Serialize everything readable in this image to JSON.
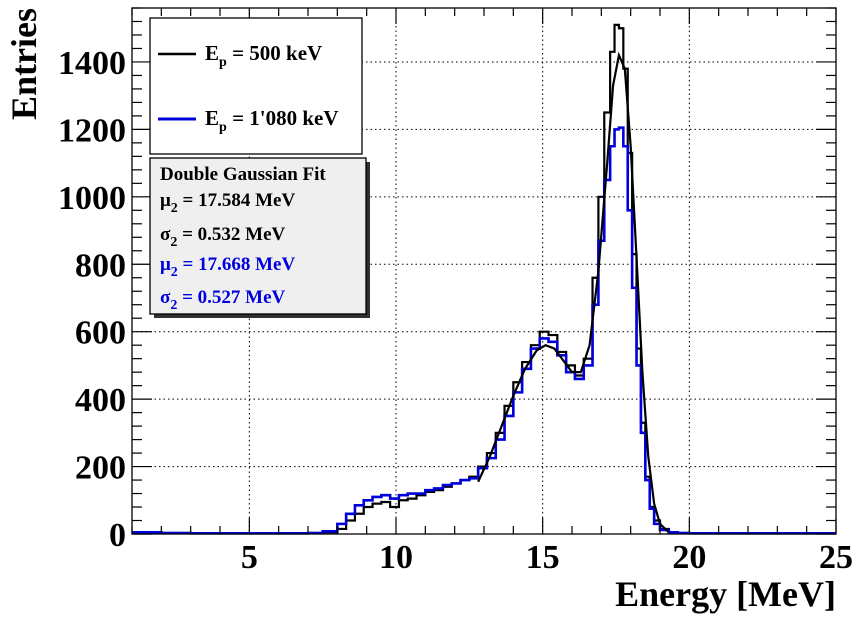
{
  "chart_data": {
    "type": "histogram",
    "xlabel": "Energy [MeV]",
    "ylabel": "Entries",
    "xlim": [
      1,
      25
    ],
    "ylim": [
      0,
      1560
    ],
    "xticks": [
      5,
      10,
      15,
      20,
      25
    ],
    "yticks": [
      0,
      200,
      400,
      600,
      800,
      1000,
      1200,
      1400
    ],
    "grid": true,
    "legend_placement": "top-left",
    "legend": [
      {
        "label_main": "E",
        "label_sub": "p",
        "label_rest": " = 500 keV",
        "color": "#000000"
      },
      {
        "label_main": "E",
        "label_sub": "p",
        "label_rest": " = 1'080 keV",
        "color": "#0000dd"
      }
    ],
    "stats_box": {
      "title": "Double Gaussian Fit",
      "lines": [
        {
          "sym": "μ",
          "sub": "2",
          "rest": " = 17.584 MeV",
          "color": "#000000"
        },
        {
          "sym": "σ",
          "sub": "2",
          "rest": " = 0.532 MeV",
          "color": "#000000"
        },
        {
          "sym": "μ",
          "sub": "2",
          "rest": " = 17.668 MeV",
          "color": "#0000dd"
        },
        {
          "sym": "σ",
          "sub": "2",
          "rest": " = 0.527 MeV",
          "color": "#0000dd"
        }
      ]
    },
    "series": [
      {
        "name": "E_p = 500 keV",
        "color": "#000000",
        "x": [
          1,
          2,
          3,
          4,
          5,
          6,
          7,
          7.5,
          8,
          8.3,
          8.6,
          8.9,
          9.2,
          9.5,
          9.8,
          10.1,
          10.4,
          10.7,
          11.0,
          11.3,
          11.6,
          11.9,
          12.2,
          12.5,
          12.8,
          13.1,
          13.4,
          13.7,
          14.0,
          14.3,
          14.6,
          14.9,
          15.2,
          15.5,
          15.8,
          16.1,
          16.4,
          16.7,
          16.9,
          17.1,
          17.3,
          17.45,
          17.6,
          17.75,
          17.9,
          18.05,
          18.2,
          18.35,
          18.5,
          18.65,
          18.8,
          19.0,
          19.3,
          19.6,
          20,
          21,
          22,
          23,
          24,
          25
        ],
        "y": [
          5,
          3,
          2,
          2,
          2,
          2,
          3,
          5,
          15,
          40,
          60,
          80,
          90,
          95,
          80,
          100,
          105,
          115,
          125,
          130,
          140,
          150,
          160,
          170,
          200,
          240,
          300,
          380,
          450,
          510,
          560,
          600,
          590,
          540,
          500,
          470,
          520,
          760,
          1000,
          1250,
          1430,
          1510,
          1500,
          1380,
          1130,
          830,
          550,
          330,
          170,
          80,
          40,
          15,
          5,
          3,
          2,
          2,
          2,
          2,
          2,
          2
        ]
      },
      {
        "name": "E_p = 1'080 keV",
        "color": "#0000dd",
        "x": [
          1,
          2,
          3,
          4,
          5,
          6,
          7,
          7.5,
          8,
          8.3,
          8.6,
          8.9,
          9.2,
          9.5,
          9.8,
          10.1,
          10.4,
          10.7,
          11.0,
          11.3,
          11.6,
          11.9,
          12.2,
          12.5,
          12.8,
          13.1,
          13.4,
          13.7,
          14.0,
          14.3,
          14.6,
          14.9,
          15.2,
          15.5,
          15.8,
          16.1,
          16.4,
          16.7,
          16.9,
          17.1,
          17.3,
          17.45,
          17.6,
          17.75,
          17.9,
          18.05,
          18.2,
          18.35,
          18.5,
          18.65,
          18.8,
          19.0,
          19.3,
          19.6,
          20,
          21,
          22,
          23,
          24,
          25
        ],
        "y": [
          5,
          3,
          2,
          2,
          2,
          2,
          3,
          8,
          30,
          60,
          85,
          100,
          110,
          115,
          105,
          115,
          120,
          120,
          130,
          135,
          145,
          150,
          160,
          165,
          195,
          225,
          280,
          350,
          420,
          490,
          550,
          580,
          570,
          530,
          480,
          460,
          500,
          680,
          870,
          1050,
          1150,
          1200,
          1205,
          1150,
          960,
          730,
          500,
          300,
          160,
          75,
          30,
          12,
          5,
          3,
          2,
          2,
          2,
          2,
          2,
          2
        ]
      }
    ],
    "fit": {
      "color": "#000000",
      "x": [
        12.8,
        13.2,
        13.6,
        14.0,
        14.4,
        14.8,
        15.1,
        15.4,
        15.7,
        16.0,
        16.3,
        16.6,
        16.9,
        17.2,
        17.4,
        17.6,
        17.8,
        18.0,
        18.2,
        18.4,
        18.6,
        18.8,
        19.0,
        19.3
      ],
      "y": [
        155,
        230,
        320,
        410,
        490,
        545,
        560,
        550,
        515,
        480,
        480,
        560,
        780,
        1100,
        1330,
        1420,
        1380,
        1150,
        820,
        480,
        230,
        90,
        30,
        5
      ]
    }
  }
}
